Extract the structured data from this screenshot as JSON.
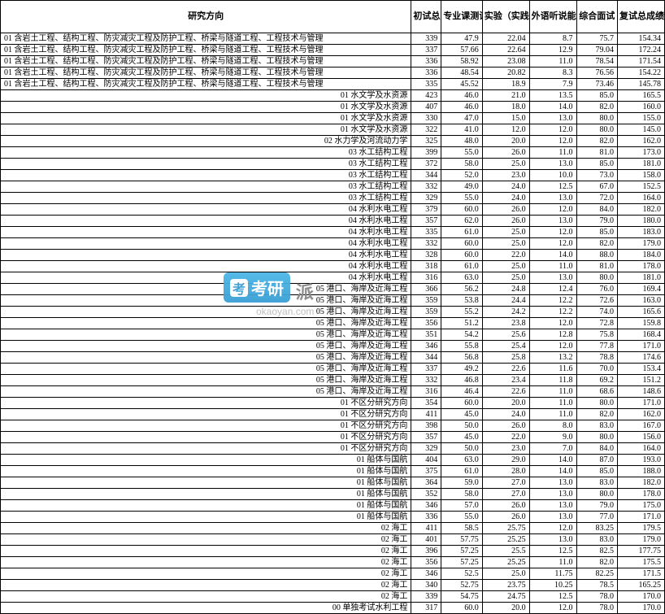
{
  "headers": {
    "direction": "研究方向",
    "chushi": "初试总成",
    "zhuanye": "专业课测试",
    "shiyan": "实验（实践）能力",
    "waiyu": "外语听说能力",
    "zonghe": "综合面试",
    "fushi": "复试总成绩"
  },
  "watermark": {
    "brand": "考研",
    "suffix": "派",
    "url": "okaoyan.com"
  },
  "rows": [
    {
      "dir": "01 含岩土工程、结构工程、防灾减灾工程及防护工程、桥梁与隧道工程、工程技术与管理",
      "left": true,
      "c": "339",
      "z": "47.9",
      "s": "22.04",
      "w": "8.7",
      "zh": "75.7",
      "f": "154.34"
    },
    {
      "dir": "01 含岩土工程、结构工程、防灾减灾工程及防护工程、桥梁与隧道工程、工程技术与管理",
      "left": true,
      "c": "337",
      "z": "57.66",
      "s": "22.64",
      "w": "12.9",
      "zh": "79.04",
      "f": "172.24"
    },
    {
      "dir": "01 含岩土工程、结构工程、防灾减灾工程及防护工程、桥梁与隧道工程、工程技术与管理",
      "left": true,
      "c": "336",
      "z": "58.92",
      "s": "23.08",
      "w": "11.0",
      "zh": "78.54",
      "f": "171.54"
    },
    {
      "dir": "01 含岩土工程、结构工程、防灾减灾工程及防护工程、桥梁与隧道工程、工程技术与管理",
      "left": true,
      "c": "336",
      "z": "48.54",
      "s": "20.82",
      "w": "8.3",
      "zh": "76.56",
      "f": "154.22"
    },
    {
      "dir": "01 含岩土工程、结构工程、防灾减灾工程及防护工程、桥梁与隧道工程、工程技术与管理",
      "left": true,
      "c": "335",
      "z": "45.52",
      "s": "18.9",
      "w": "7.9",
      "zh": "73.46",
      "f": "145.78"
    },
    {
      "dir": "01 水文学及水资源",
      "c": "423",
      "z": "46.0",
      "s": "21.0",
      "w": "13.5",
      "zh": "85.0",
      "f": "165.5"
    },
    {
      "dir": "01 水文学及水资源",
      "c": "407",
      "z": "46.0",
      "s": "18.0",
      "w": "14.0",
      "zh": "82.0",
      "f": "160.0"
    },
    {
      "dir": "01 水文学及水资源",
      "c": "330",
      "z": "47.0",
      "s": "15.0",
      "w": "13.0",
      "zh": "80.0",
      "f": "155.0"
    },
    {
      "dir": "01 水文学及水资源",
      "c": "322",
      "z": "41.0",
      "s": "12.0",
      "w": "12.0",
      "zh": "80.0",
      "f": "145.0"
    },
    {
      "dir": "02 水力学及河流动力学",
      "c": "325",
      "z": "48.0",
      "s": "20.0",
      "w": "12.0",
      "zh": "82.0",
      "f": "162.0"
    },
    {
      "dir": "03 水工结构工程",
      "c": "399",
      "z": "55.0",
      "s": "26.0",
      "w": "11.0",
      "zh": "81.0",
      "f": "173.0"
    },
    {
      "dir": "03 水工结构工程",
      "c": "372",
      "z": "58.0",
      "s": "25.0",
      "w": "13.0",
      "zh": "85.0",
      "f": "181.0"
    },
    {
      "dir": "03 水工结构工程",
      "c": "344",
      "z": "52.0",
      "s": "23.0",
      "w": "10.0",
      "zh": "73.0",
      "f": "158.0"
    },
    {
      "dir": "03 水工结构工程",
      "c": "332",
      "z": "49.0",
      "s": "24.0",
      "w": "12.5",
      "zh": "67.0",
      "f": "152.5"
    },
    {
      "dir": "03 水工结构工程",
      "c": "329",
      "z": "55.0",
      "s": "24.0",
      "w": "13.0",
      "zh": "72.0",
      "f": "164.0"
    },
    {
      "dir": "04 水利水电工程",
      "c": "379",
      "z": "60.0",
      "s": "26.0",
      "w": "12.0",
      "zh": "84.0",
      "f": "182.0"
    },
    {
      "dir": "04 水利水电工程",
      "c": "357",
      "z": "62.0",
      "s": "26.0",
      "w": "13.0",
      "zh": "79.0",
      "f": "180.0"
    },
    {
      "dir": "04 水利水电工程",
      "c": "335",
      "z": "61.0",
      "s": "25.0",
      "w": "12.0",
      "zh": "85.0",
      "f": "183.0"
    },
    {
      "dir": "04 水利水电工程",
      "c": "332",
      "z": "60.0",
      "s": "25.0",
      "w": "12.0",
      "zh": "82.0",
      "f": "179.0"
    },
    {
      "dir": "04 水利水电工程",
      "c": "328",
      "z": "60.0",
      "s": "22.0",
      "w": "14.0",
      "zh": "88.0",
      "f": "184.0"
    },
    {
      "dir": "04 水利水电工程",
      "c": "318",
      "z": "61.0",
      "s": "25.0",
      "w": "11.0",
      "zh": "81.0",
      "f": "178.0"
    },
    {
      "dir": "04 水利水电工程",
      "c": "316",
      "z": "63.0",
      "s": "25.0",
      "w": "13.0",
      "zh": "80.0",
      "f": "181.0"
    },
    {
      "dir": "05 港口、海岸及近海工程",
      "c": "366",
      "z": "56.2",
      "s": "24.8",
      "w": "12.4",
      "zh": "76.0",
      "f": "169.4"
    },
    {
      "dir": "05 港口、海岸及近海工程",
      "c": "359",
      "z": "53.8",
      "s": "24.4",
      "w": "12.2",
      "zh": "72.6",
      "f": "163.0"
    },
    {
      "dir": "05 港口、海岸及近海工程",
      "c": "359",
      "z": "55.2",
      "s": "24.2",
      "w": "12.2",
      "zh": "74.0",
      "f": "165.6"
    },
    {
      "dir": "05 港口、海岸及近海工程",
      "c": "356",
      "z": "51.2",
      "s": "23.8",
      "w": "12.0",
      "zh": "72.8",
      "f": "159.8"
    },
    {
      "dir": "05 港口、海岸及近海工程",
      "c": "351",
      "z": "54.2",
      "s": "25.6",
      "w": "12.8",
      "zh": "75.8",
      "f": "168.4"
    },
    {
      "dir": "05 港口、海岸及近海工程",
      "c": "346",
      "z": "55.8",
      "s": "25.4",
      "w": "12.0",
      "zh": "77.8",
      "f": "171.0"
    },
    {
      "dir": "05 港口、海岸及近海工程",
      "c": "344",
      "z": "56.8",
      "s": "25.8",
      "w": "13.2",
      "zh": "78.8",
      "f": "174.6"
    },
    {
      "dir": "05 港口、海岸及近海工程",
      "c": "337",
      "z": "49.2",
      "s": "22.6",
      "w": "11.6",
      "zh": "70.0",
      "f": "153.4"
    },
    {
      "dir": "05 港口、海岸及近海工程",
      "c": "332",
      "z": "46.8",
      "s": "23.4",
      "w": "11.8",
      "zh": "69.2",
      "f": "151.2"
    },
    {
      "dir": "05 港口、海岸及近海工程",
      "c": "316",
      "z": "46.4",
      "s": "22.6",
      "w": "11.0",
      "zh": "68.6",
      "f": "148.6"
    },
    {
      "dir": "01 不区分研究方向",
      "c": "354",
      "z": "60.0",
      "s": "20.0",
      "w": "11.0",
      "zh": "80.0",
      "f": "171.0"
    },
    {
      "dir": "01 不区分研究方向",
      "c": "411",
      "z": "45.0",
      "s": "24.0",
      "w": "11.0",
      "zh": "82.0",
      "f": "162.0"
    },
    {
      "dir": "01 不区分研究方向",
      "c": "398",
      "z": "50.0",
      "s": "26.0",
      "w": "8.0",
      "zh": "83.0",
      "f": "167.0"
    },
    {
      "dir": "01 不区分研究方向",
      "c": "357",
      "z": "45.0",
      "s": "22.0",
      "w": "9.0",
      "zh": "80.0",
      "f": "156.0"
    },
    {
      "dir": "01 不区分研究方向",
      "c": "329",
      "z": "50.0",
      "s": "23.0",
      "w": "7.0",
      "zh": "84.0",
      "f": "164.0"
    },
    {
      "dir": "01 船体与国航",
      "c": "404",
      "z": "63.0",
      "s": "29.0",
      "w": "14.0",
      "zh": "87.0",
      "f": "193.0"
    },
    {
      "dir": "01 船体与国航",
      "c": "375",
      "z": "61.0",
      "s": "28.0",
      "w": "14.0",
      "zh": "85.0",
      "f": "188.0"
    },
    {
      "dir": "01 船体与国航",
      "c": "364",
      "z": "59.0",
      "s": "27.0",
      "w": "13.0",
      "zh": "83.0",
      "f": "182.0"
    },
    {
      "dir": "01 船体与国航",
      "c": "352",
      "z": "58.0",
      "s": "27.0",
      "w": "13.0",
      "zh": "80.0",
      "f": "178.0"
    },
    {
      "dir": "01 船体与国航",
      "c": "346",
      "z": "57.0",
      "s": "26.0",
      "w": "13.0",
      "zh": "79.0",
      "f": "175.0"
    },
    {
      "dir": "01 船体与国航",
      "c": "336",
      "z": "55.0",
      "s": "26.0",
      "w": "13.0",
      "zh": "77.0",
      "f": "171.0"
    },
    {
      "dir": "02 海工",
      "c": "411",
      "z": "58.5",
      "s": "25.75",
      "w": "12.0",
      "zh": "83.25",
      "f": "179.5"
    },
    {
      "dir": "02 海工",
      "c": "401",
      "z": "57.75",
      "s": "25.25",
      "w": "13.0",
      "zh": "83.0",
      "f": "179.0"
    },
    {
      "dir": "02 海工",
      "c": "396",
      "z": "57.25",
      "s": "25.5",
      "w": "12.5",
      "zh": "82.5",
      "f": "177.75"
    },
    {
      "dir": "02 海工",
      "c": "356",
      "z": "57.25",
      "s": "25.25",
      "w": "11.0",
      "zh": "82.0",
      "f": "175.5"
    },
    {
      "dir": "02 海工",
      "c": "346",
      "z": "52.5",
      "s": "25.0",
      "w": "11.75",
      "zh": "82.25",
      "f": "171.5"
    },
    {
      "dir": "02 海工",
      "c": "340",
      "z": "52.75",
      "s": "23.75",
      "w": "10.25",
      "zh": "78.5",
      "f": "165.25"
    },
    {
      "dir": "02 海工",
      "c": "339",
      "z": "54.75",
      "s": "24.75",
      "w": "12.5",
      "zh": "78.0",
      "f": "170.0"
    },
    {
      "dir": "00 单独考试水利工程",
      "c": "317",
      "z": "60.0",
      "s": "20.0",
      "w": "12.0",
      "zh": "78.0",
      "f": "170.0"
    }
  ]
}
